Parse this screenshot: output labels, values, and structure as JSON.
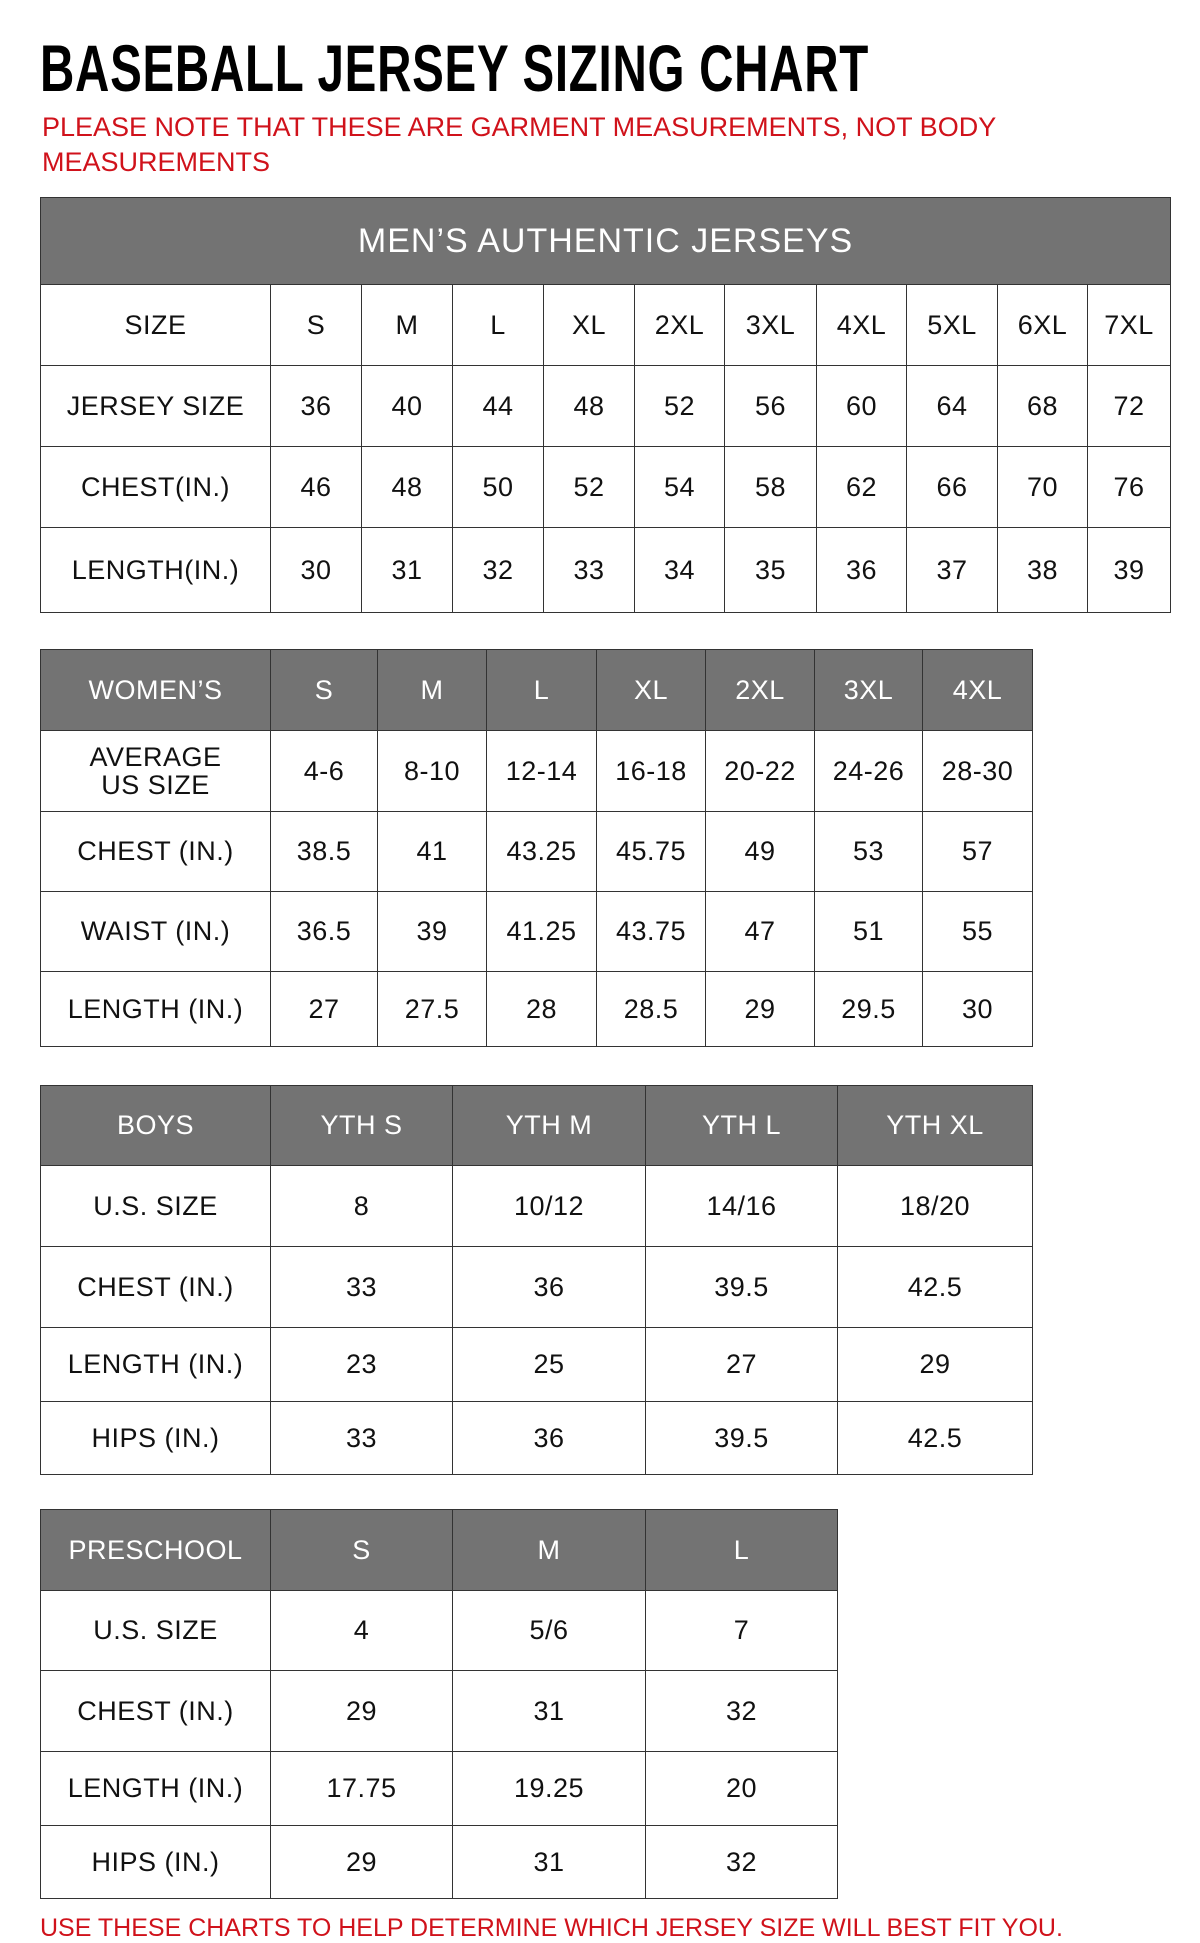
{
  "title": "BASEBALL JERSEY SIZING CHART",
  "note": "PLEASE NOTE THAT THESE ARE GARMENT MEASUREMENTS, NOT BODY MEASUREMENTS",
  "footer": "USE THESE CHARTS TO HELP DETERMINE WHICH JERSEY SIZE WILL BEST FIT YOU.",
  "colors": {
    "header_bg": "#737373",
    "note_red": "#d0121b"
  },
  "tables": [
    {
      "caption": "MEN’S AUTHENTIC JERSEYS",
      "header": [
        "SIZE",
        "S",
        "M",
        "L",
        "XL",
        "2XL",
        "3XL",
        "4XL",
        "5XL",
        "6XL",
        "7XL"
      ],
      "header_style": "white",
      "rows": [
        [
          "JERSEY SIZE",
          "36",
          "40",
          "44",
          "48",
          "52",
          "56",
          "60",
          "64",
          "68",
          "72"
        ],
        [
          "CHEST(IN.)",
          "46",
          "48",
          "50",
          "52",
          "54",
          "58",
          "62",
          "66",
          "70",
          "76"
        ],
        [
          "LENGTH(IN.)",
          "30",
          "31",
          "32",
          "33",
          "34",
          "35",
          "36",
          "37",
          "38",
          "39"
        ]
      ]
    },
    {
      "header": [
        "WOMEN’S",
        "S",
        "M",
        "L",
        "XL",
        "2XL",
        "3XL",
        "4XL"
      ],
      "rows": [
        [
          "AVERAGE US SIZE",
          "4-6",
          "8-10",
          "12-14",
          "16-18",
          "20-22",
          "24-26",
          "28-30"
        ],
        [
          "CHEST (IN.)",
          "38.5",
          "41",
          "43.25",
          "45.75",
          "49",
          "53",
          "57"
        ],
        [
          "WAIST (IN.)",
          "36.5",
          "39",
          "41.25",
          "43.75",
          "47",
          "51",
          "55"
        ],
        [
          "LENGTH (IN.)",
          "27",
          "27.5",
          "28",
          "28.5",
          "29",
          "29.5",
          "30"
        ]
      ]
    },
    {
      "header": [
        "BOYS",
        "YTH S",
        "YTH M",
        "YTH L",
        "YTH XL"
      ],
      "rows": [
        [
          "U.S. SIZE",
          "8",
          "10/12",
          "14/16",
          "18/20"
        ],
        [
          "CHEST (IN.)",
          "33",
          "36",
          "39.5",
          "42.5"
        ],
        [
          "LENGTH (IN.)",
          "23",
          "25",
          "27",
          "29"
        ],
        [
          "HIPS (IN.)",
          "33",
          "36",
          "39.5",
          "42.5"
        ]
      ]
    },
    {
      "header": [
        "PRESCHOOL",
        "S",
        "M",
        "L"
      ],
      "rows": [
        [
          "U.S. SIZE",
          "4",
          "5/6",
          "7"
        ],
        [
          "CHEST (IN.)",
          "29",
          "31",
          "32"
        ],
        [
          "LENGTH (IN.)",
          "17.75",
          "19.25",
          "20"
        ],
        [
          "HIPS (IN.)",
          "29",
          "31",
          "32"
        ]
      ]
    }
  ]
}
